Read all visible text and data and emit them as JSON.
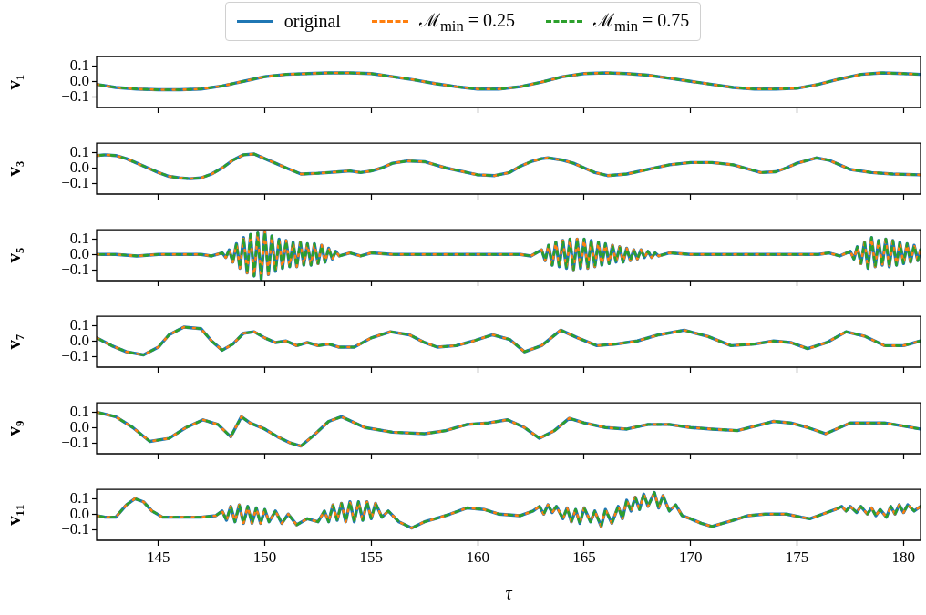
{
  "chart_data": [
    {
      "type": "line",
      "legend": "top",
      "ylabel": "v₁",
      "tick_labels": "y",
      "xlim": [
        142.1,
        180.8
      ],
      "ylim": [
        -0.17,
        0.16
      ],
      "xticks": [
        145,
        150,
        155,
        160,
        165,
        170,
        175,
        180
      ],
      "yticks": [
        {
          "value": -0.1,
          "label": "−0.1"
        },
        {
          "value": 0,
          "label": "0.0"
        },
        {
          "value": 0.1,
          "label": "0.1"
        }
      ],
      "x": [
        142.1,
        143,
        144,
        145,
        146,
        147,
        148,
        149,
        150,
        151,
        152,
        153,
        154,
        155,
        156,
        157,
        158,
        159,
        160,
        161,
        162,
        163,
        164,
        165,
        166,
        167,
        168,
        169,
        170,
        171,
        172,
        173,
        174,
        175,
        176,
        177,
        178,
        179,
        180,
        180.8
      ],
      "series": [
        {
          "name": "original",
          "color": "#1f77b4",
          "line_style": "solid",
          "values": [
            -0.02,
            -0.04,
            -0.05,
            -0.055,
            -0.055,
            -0.05,
            -0.03,
            0.0,
            0.03,
            0.045,
            0.05,
            0.055,
            0.055,
            0.05,
            0.03,
            0.01,
            -0.015,
            -0.035,
            -0.05,
            -0.05,
            -0.035,
            -0.005,
            0.03,
            0.05,
            0.055,
            0.05,
            0.04,
            0.02,
            0.0,
            -0.02,
            -0.04,
            -0.05,
            -0.05,
            -0.045,
            -0.02,
            0.015,
            0.045,
            0.055,
            0.05,
            0.045
          ]
        },
        {
          "name": "ℳ$_{min}$ = 0.25",
          "color": "#ff7f0e",
          "line_style": "dashed",
          "values": [
            -0.02,
            -0.04,
            -0.05,
            -0.055,
            -0.055,
            -0.05,
            -0.03,
            0.0,
            0.03,
            0.045,
            0.05,
            0.055,
            0.055,
            0.05,
            0.03,
            0.01,
            -0.015,
            -0.035,
            -0.05,
            -0.05,
            -0.035,
            -0.005,
            0.03,
            0.05,
            0.055,
            0.05,
            0.04,
            0.02,
            0.0,
            -0.02,
            -0.04,
            -0.05,
            -0.05,
            -0.045,
            -0.02,
            0.015,
            0.045,
            0.055,
            0.05,
            0.045
          ]
        },
        {
          "name": "ℳ$_{min}$ = 0.75",
          "color": "#2ca02c",
          "line_style": "dashed",
          "values": [
            -0.02,
            -0.04,
            -0.05,
            -0.055,
            -0.055,
            -0.05,
            -0.03,
            0.0,
            0.03,
            0.045,
            0.05,
            0.055,
            0.055,
            0.05,
            0.03,
            0.01,
            -0.015,
            -0.035,
            -0.05,
            -0.05,
            -0.035,
            -0.005,
            0.03,
            0.05,
            0.055,
            0.05,
            0.04,
            0.02,
            0.0,
            -0.02,
            -0.04,
            -0.05,
            -0.05,
            -0.045,
            -0.02,
            0.015,
            0.045,
            0.055,
            0.05,
            0.045
          ]
        }
      ]
    },
    {
      "type": "line",
      "ylabel": "v₃",
      "tick_labels": "y",
      "xlim": [
        142.1,
        180.8
      ],
      "ylim": [
        -0.17,
        0.16
      ],
      "xticks": [
        145,
        150,
        155,
        160,
        165,
        170,
        175,
        180
      ],
      "yticks": [
        {
          "value": -0.1,
          "label": "−0.1"
        },
        {
          "value": 0,
          "label": "0.0"
        },
        {
          "value": 0.1,
          "label": "0.1"
        }
      ],
      "x": [
        142.1,
        142.5,
        143,
        143.5,
        144,
        144.5,
        145,
        145.5,
        146,
        146.5,
        147,
        147.5,
        148,
        148.5,
        149,
        149.5,
        150,
        150.5,
        151,
        151.7,
        152.5,
        153,
        153.5,
        154,
        154.5,
        155,
        155.5,
        156,
        156.7,
        157.5,
        158,
        158.5,
        159,
        159.5,
        160,
        160.8,
        161.5,
        162,
        162.5,
        163,
        163.3,
        164,
        164.5,
        165,
        165.5,
        166.1,
        167,
        168,
        169,
        170,
        171,
        172,
        173.3,
        174,
        174.5,
        175,
        175.9,
        176.5,
        177,
        177.5,
        178.5,
        179.5,
        180.8
      ],
      "series": [
        {
          "color": "#1f77b4",
          "line_style": "solid",
          "values": [
            0.08,
            0.085,
            0.08,
            0.06,
            0.03,
            0.0,
            -0.03,
            -0.055,
            -0.065,
            -0.07,
            -0.065,
            -0.04,
            0.0,
            0.05,
            0.085,
            0.09,
            0.06,
            0.03,
            0.0,
            -0.04,
            -0.035,
            -0.03,
            -0.025,
            -0.02,
            -0.03,
            -0.02,
            0.0,
            0.03,
            0.045,
            0.04,
            0.02,
            0.0,
            -0.015,
            -0.03,
            -0.045,
            -0.05,
            -0.03,
            0.01,
            0.04,
            0.06,
            0.065,
            0.05,
            0.03,
            0.0,
            -0.03,
            -0.05,
            -0.04,
            -0.01,
            0.02,
            0.035,
            0.035,
            0.02,
            -0.03,
            -0.025,
            0.0,
            0.03,
            0.065,
            0.05,
            0.02,
            -0.01,
            -0.03,
            -0.04,
            -0.045
          ]
        },
        {
          "color": "#ff7f0e",
          "line_style": "dashed",
          "values": [
            0.08,
            0.085,
            0.08,
            0.06,
            0.03,
            0.0,
            -0.03,
            -0.055,
            -0.065,
            -0.07,
            -0.065,
            -0.04,
            0.0,
            0.05,
            0.085,
            0.09,
            0.06,
            0.03,
            0.0,
            -0.04,
            -0.035,
            -0.03,
            -0.025,
            -0.02,
            -0.03,
            -0.02,
            0.0,
            0.03,
            0.045,
            0.04,
            0.02,
            0.0,
            -0.015,
            -0.03,
            -0.045,
            -0.05,
            -0.03,
            0.01,
            0.04,
            0.06,
            0.065,
            0.05,
            0.03,
            0.0,
            -0.03,
            -0.05,
            -0.04,
            -0.01,
            0.02,
            0.035,
            0.035,
            0.02,
            -0.03,
            -0.025,
            0.0,
            0.03,
            0.065,
            0.05,
            0.02,
            -0.01,
            -0.03,
            -0.04,
            -0.045
          ]
        },
        {
          "color": "#2ca02c",
          "line_style": "dashed",
          "values": [
            0.08,
            0.085,
            0.08,
            0.06,
            0.03,
            0.0,
            -0.03,
            -0.055,
            -0.065,
            -0.07,
            -0.065,
            -0.04,
            0.0,
            0.05,
            0.085,
            0.09,
            0.06,
            0.03,
            0.0,
            -0.04,
            -0.035,
            -0.03,
            -0.025,
            -0.02,
            -0.03,
            -0.02,
            0.0,
            0.03,
            0.045,
            0.04,
            0.02,
            0.0,
            -0.015,
            -0.03,
            -0.045,
            -0.05,
            -0.03,
            0.01,
            0.04,
            0.06,
            0.065,
            0.05,
            0.03,
            0.0,
            -0.03,
            -0.05,
            -0.04,
            -0.01,
            0.02,
            0.035,
            0.035,
            0.02,
            -0.03,
            -0.025,
            0.0,
            0.03,
            0.065,
            0.05,
            0.02,
            -0.01,
            -0.03,
            -0.04,
            -0.045
          ]
        }
      ]
    },
    {
      "type": "line",
      "ylabel": "v₅",
      "tick_labels": "y",
      "xlim": [
        142.1,
        180.8
      ],
      "ylim": [
        -0.17,
        0.16
      ],
      "xticks": [
        145,
        150,
        155,
        160,
        165,
        170,
        175,
        180
      ],
      "yticks": [
        {
          "value": -0.1,
          "label": "−0.1"
        },
        {
          "value": 0,
          "label": "0.0"
        },
        {
          "value": 0.1,
          "label": "0.1"
        }
      ],
      "x": [
        142.1,
        143,
        144,
        145,
        146,
        147,
        147.5,
        148.0,
        148.17,
        148.33,
        148.5,
        148.67,
        148.83,
        149.0,
        149.17,
        149.33,
        149.5,
        149.67,
        149.83,
        150.0,
        150.17,
        150.33,
        150.5,
        150.67,
        150.83,
        151.0,
        151.17,
        151.33,
        151.5,
        151.67,
        151.83,
        152.0,
        152.17,
        152.33,
        152.5,
        152.67,
        152.83,
        153.0,
        153.17,
        153.33,
        153.5,
        154,
        154.5,
        155,
        156,
        157,
        158,
        159,
        160,
        161,
        162,
        162.5,
        163.0,
        163.17,
        163.33,
        163.5,
        163.67,
        163.83,
        164.0,
        164.17,
        164.33,
        164.5,
        164.67,
        164.83,
        165.0,
        165.17,
        165.33,
        165.5,
        165.67,
        165.83,
        166.0,
        166.17,
        166.33,
        166.5,
        166.67,
        166.83,
        167.0,
        167.17,
        167.33,
        167.5,
        167.67,
        167.83,
        168.0,
        168.17,
        168.33,
        168.5,
        169,
        170,
        171,
        172,
        173,
        174,
        175,
        176,
        176.5,
        177,
        177.5,
        177.67,
        177.83,
        178.0,
        178.17,
        178.33,
        178.5,
        178.67,
        178.83,
        179.0,
        179.17,
        179.33,
        179.5,
        179.67,
        179.83,
        180.0,
        180.17,
        180.33,
        180.5,
        180.67,
        180.8
      ],
      "series": [
        {
          "color": "#1f77b4",
          "line_style": "solid",
          "values": [
            0.0,
            0.0,
            -0.01,
            0.0,
            0.0,
            0.0,
            -0.01,
            0.01,
            -0.02,
            0.03,
            -0.05,
            0.07,
            -0.09,
            0.11,
            -0.12,
            0.13,
            -0.14,
            0.14,
            -0.16,
            0.15,
            -0.13,
            0.12,
            -0.11,
            0.1,
            -0.09,
            0.09,
            -0.08,
            0.08,
            -0.08,
            0.08,
            -0.07,
            0.07,
            -0.07,
            0.07,
            -0.06,
            0.06,
            -0.05,
            0.04,
            -0.03,
            0.02,
            -0.01,
            0.01,
            -0.01,
            0.01,
            0.0,
            0.0,
            0.0,
            0.0,
            0.0,
            0.0,
            0.0,
            -0.01,
            0.03,
            -0.04,
            0.06,
            -0.07,
            0.08,
            -0.08,
            0.09,
            -0.09,
            0.1,
            -0.1,
            0.1,
            -0.09,
            0.1,
            -0.09,
            0.09,
            -0.08,
            0.08,
            -0.07,
            0.07,
            -0.06,
            0.06,
            -0.05,
            0.05,
            -0.05,
            0.04,
            -0.04,
            0.03,
            -0.03,
            0.03,
            -0.02,
            0.02,
            -0.02,
            0.01,
            -0.01,
            0.01,
            0.0,
            0.0,
            0.0,
            0.0,
            0.0,
            0.0,
            0.0,
            0.01,
            -0.01,
            0.02,
            -0.03,
            0.05,
            -0.06,
            0.08,
            -0.09,
            0.11,
            -0.08,
            0.09,
            -0.07,
            0.1,
            -0.08,
            0.09,
            -0.07,
            0.08,
            -0.06,
            0.07,
            -0.05,
            0.06,
            -0.04,
            0.03
          ]
        },
        {
          "color": "#ff7f0e",
          "line_style": "dashed",
          "values": [
            0.0,
            0.0,
            -0.01,
            0.0,
            0.0,
            0.0,
            -0.01,
            0.01,
            -0.02,
            0.03,
            -0.05,
            0.07,
            -0.09,
            0.11,
            -0.12,
            0.13,
            -0.14,
            0.14,
            -0.16,
            0.15,
            -0.13,
            0.12,
            -0.11,
            0.1,
            -0.09,
            0.09,
            -0.08,
            0.08,
            -0.08,
            0.08,
            -0.07,
            0.07,
            -0.07,
            0.07,
            -0.06,
            0.06,
            -0.05,
            0.04,
            -0.03,
            0.02,
            -0.01,
            0.01,
            -0.01,
            0.01,
            0.0,
            0.0,
            0.0,
            0.0,
            0.0,
            0.0,
            0.0,
            -0.01,
            0.03,
            -0.04,
            0.06,
            -0.07,
            0.08,
            -0.08,
            0.09,
            -0.09,
            0.1,
            -0.1,
            0.1,
            -0.09,
            0.1,
            -0.09,
            0.09,
            -0.08,
            0.08,
            -0.07,
            0.07,
            -0.06,
            0.06,
            -0.05,
            0.05,
            -0.05,
            0.04,
            -0.04,
            0.03,
            -0.03,
            0.03,
            -0.02,
            0.02,
            -0.02,
            0.01,
            -0.01,
            0.01,
            0.0,
            0.0,
            0.0,
            0.0,
            0.0,
            0.0,
            0.0,
            0.01,
            -0.01,
            0.02,
            -0.03,
            0.05,
            -0.06,
            0.08,
            -0.09,
            0.11,
            -0.08,
            0.09,
            -0.07,
            0.1,
            -0.08,
            0.09,
            -0.07,
            0.08,
            -0.06,
            0.07,
            -0.05,
            0.06,
            -0.04,
            0.03
          ]
        },
        {
          "color": "#2ca02c",
          "line_style": "dashed",
          "values": [
            0.0,
            0.0,
            -0.01,
            0.0,
            0.0,
            0.0,
            -0.01,
            0.01,
            -0.02,
            0.03,
            -0.05,
            0.07,
            -0.09,
            0.11,
            -0.12,
            0.13,
            -0.14,
            0.14,
            -0.16,
            0.15,
            -0.13,
            0.12,
            -0.11,
            0.1,
            -0.09,
            0.09,
            -0.08,
            0.08,
            -0.08,
            0.08,
            -0.07,
            0.07,
            -0.07,
            0.07,
            -0.06,
            0.06,
            -0.05,
            0.04,
            -0.03,
            0.02,
            -0.01,
            0.01,
            -0.01,
            0.01,
            0.0,
            0.0,
            0.0,
            0.0,
            0.0,
            0.0,
            0.0,
            -0.01,
            0.03,
            -0.04,
            0.06,
            -0.07,
            0.08,
            -0.08,
            0.09,
            -0.09,
            0.1,
            -0.1,
            0.1,
            -0.09,
            0.1,
            -0.09,
            0.09,
            -0.08,
            0.08,
            -0.07,
            0.07,
            -0.06,
            0.06,
            -0.05,
            0.05,
            -0.05,
            0.04,
            -0.04,
            0.03,
            -0.03,
            0.03,
            -0.02,
            0.02,
            -0.02,
            0.01,
            -0.01,
            0.01,
            0.0,
            0.0,
            0.0,
            0.0,
            0.0,
            0.0,
            0.0,
            0.01,
            -0.01,
            0.02,
            -0.03,
            0.05,
            -0.06,
            0.08,
            -0.09,
            0.11,
            -0.08,
            0.09,
            -0.07,
            0.1,
            -0.08,
            0.09,
            -0.07,
            0.08,
            -0.06,
            0.07,
            -0.05,
            0.06,
            -0.04,
            0.03
          ]
        }
      ]
    },
    {
      "type": "line",
      "ylabel": "v₇",
      "tick_labels": "y",
      "xlim": [
        142.1,
        180.8
      ],
      "ylim": [
        -0.17,
        0.16
      ],
      "xticks": [
        145,
        150,
        155,
        160,
        165,
        170,
        175,
        180
      ],
      "yticks": [
        {
          "value": -0.1,
          "label": "−0.1"
        },
        {
          "value": 0,
          "label": "0.0"
        },
        {
          "value": 0.1,
          "label": "0.1"
        }
      ],
      "x": [
        142.1,
        142.8,
        143.5,
        144.3,
        145,
        145.5,
        146.2,
        147,
        147.5,
        148,
        148.5,
        149,
        149.5,
        150,
        150.5,
        151,
        151.5,
        152,
        152.5,
        153,
        153.5,
        154.2,
        155,
        155.9,
        156.8,
        157.5,
        158.1,
        159,
        159.8,
        160.7,
        161.5,
        162.2,
        163,
        163.9,
        164.7,
        165.6,
        166.5,
        167.5,
        168.5,
        169.7,
        170.8,
        171.9,
        173,
        173.9,
        174.7,
        175.5,
        176.4,
        177.3,
        178.2,
        179.1,
        180,
        180.8
      ],
      "series": [
        {
          "color": "#1f77b4",
          "line_style": "solid",
          "values": [
            0.02,
            -0.03,
            -0.07,
            -0.09,
            -0.04,
            0.04,
            0.09,
            0.08,
            0.0,
            -0.06,
            -0.02,
            0.05,
            0.06,
            0.02,
            -0.01,
            0.0,
            -0.03,
            -0.01,
            -0.03,
            -0.02,
            -0.04,
            -0.04,
            0.02,
            0.06,
            0.04,
            -0.01,
            -0.04,
            -0.03,
            0.0,
            0.04,
            0.01,
            -0.07,
            -0.03,
            0.07,
            0.02,
            -0.03,
            -0.02,
            0.0,
            0.04,
            0.07,
            0.03,
            -0.03,
            -0.02,
            0.0,
            -0.01,
            -0.05,
            -0.01,
            0.06,
            0.03,
            -0.03,
            -0.03,
            0.0
          ]
        },
        {
          "color": "#ff7f0e",
          "line_style": "dashed",
          "values": [
            0.02,
            -0.03,
            -0.07,
            -0.09,
            -0.04,
            0.04,
            0.09,
            0.08,
            0.0,
            -0.06,
            -0.02,
            0.05,
            0.06,
            0.02,
            -0.01,
            0.0,
            -0.03,
            -0.01,
            -0.03,
            -0.02,
            -0.04,
            -0.04,
            0.02,
            0.06,
            0.04,
            -0.01,
            -0.04,
            -0.03,
            0.0,
            0.04,
            0.01,
            -0.07,
            -0.03,
            0.07,
            0.02,
            -0.03,
            -0.02,
            0.0,
            0.04,
            0.07,
            0.03,
            -0.03,
            -0.02,
            0.0,
            -0.01,
            -0.05,
            -0.01,
            0.06,
            0.03,
            -0.03,
            -0.03,
            0.0
          ]
        },
        {
          "color": "#2ca02c",
          "line_style": "dashed",
          "values": [
            0.02,
            -0.03,
            -0.07,
            -0.09,
            -0.04,
            0.04,
            0.09,
            0.08,
            0.0,
            -0.06,
            -0.02,
            0.05,
            0.06,
            0.02,
            -0.01,
            0.0,
            -0.03,
            -0.01,
            -0.03,
            -0.02,
            -0.04,
            -0.04,
            0.02,
            0.06,
            0.04,
            -0.01,
            -0.04,
            -0.03,
            0.0,
            0.04,
            0.01,
            -0.07,
            -0.03,
            0.07,
            0.02,
            -0.03,
            -0.02,
            0.0,
            0.04,
            0.07,
            0.03,
            -0.03,
            -0.02,
            0.0,
            -0.01,
            -0.05,
            -0.01,
            0.06,
            0.03,
            -0.03,
            -0.03,
            0.0
          ]
        }
      ]
    },
    {
      "type": "line",
      "ylabel": "v₉",
      "tick_labels": "y",
      "xlim": [
        142.1,
        180.8
      ],
      "ylim": [
        -0.17,
        0.16
      ],
      "xticks": [
        145,
        150,
        155,
        160,
        165,
        170,
        175,
        180
      ],
      "yticks": [
        {
          "value": -0.1,
          "label": "−0.1"
        },
        {
          "value": 0,
          "label": "0.0"
        },
        {
          "value": 0.1,
          "label": "0.1"
        }
      ],
      "x": [
        142.1,
        143,
        143.8,
        144.6,
        145.5,
        146.3,
        147.1,
        147.8,
        148.4,
        148.9,
        149.3,
        150,
        150.6,
        151.2,
        151.7,
        152.3,
        153,
        153.6,
        154.7,
        156,
        157.5,
        158.5,
        159.5,
        160.5,
        161.4,
        162.2,
        162.9,
        163.6,
        164.3,
        165,
        166,
        167,
        168,
        169,
        170,
        171,
        172.2,
        173.9,
        174.7,
        175.5,
        176.35,
        177.5,
        178.3,
        179.1,
        180,
        180.8
      ],
      "series": [
        {
          "color": "#1f77b4",
          "line_style": "solid",
          "values": [
            0.1,
            0.07,
            0.0,
            -0.09,
            -0.07,
            0.0,
            0.05,
            0.02,
            -0.06,
            0.07,
            0.03,
            -0.01,
            -0.06,
            -0.1,
            -0.12,
            -0.05,
            0.04,
            0.07,
            0.0,
            -0.03,
            -0.04,
            -0.02,
            0.02,
            0.03,
            0.05,
            0.0,
            -0.07,
            -0.02,
            0.06,
            0.03,
            0.0,
            -0.01,
            0.02,
            0.02,
            0.0,
            -0.01,
            -0.02,
            0.04,
            0.03,
            0.0,
            -0.04,
            0.03,
            0.03,
            0.03,
            0.01,
            -0.01
          ]
        },
        {
          "color": "#ff7f0e",
          "line_style": "dashed",
          "values": [
            0.1,
            0.07,
            0.0,
            -0.09,
            -0.07,
            0.0,
            0.05,
            0.02,
            -0.06,
            0.07,
            0.03,
            -0.01,
            -0.06,
            -0.1,
            -0.12,
            -0.05,
            0.04,
            0.07,
            0.0,
            -0.03,
            -0.04,
            -0.02,
            0.02,
            0.03,
            0.05,
            0.0,
            -0.07,
            -0.02,
            0.06,
            0.03,
            0.0,
            -0.01,
            0.02,
            0.02,
            0.0,
            -0.01,
            -0.02,
            0.04,
            0.03,
            0.0,
            -0.04,
            0.03,
            0.03,
            0.03,
            0.01,
            -0.01
          ]
        },
        {
          "color": "#2ca02c",
          "line_style": "dashed",
          "values": [
            0.1,
            0.07,
            0.0,
            -0.09,
            -0.07,
            0.0,
            0.05,
            0.02,
            -0.06,
            0.07,
            0.03,
            -0.01,
            -0.06,
            -0.1,
            -0.12,
            -0.05,
            0.04,
            0.07,
            0.0,
            -0.03,
            -0.04,
            -0.02,
            0.02,
            0.03,
            0.05,
            0.0,
            -0.07,
            -0.02,
            0.06,
            0.03,
            0.0,
            -0.01,
            0.02,
            0.02,
            0.0,
            -0.01,
            -0.02,
            0.04,
            0.03,
            0.0,
            -0.04,
            0.03,
            0.03,
            0.03,
            0.01,
            -0.01
          ]
        }
      ]
    },
    {
      "type": "line",
      "ylabel": "v₁₁",
      "xlabel": "τ",
      "xlim": [
        142.1,
        180.8
      ],
      "ylim": [
        -0.17,
        0.16
      ],
      "xticks": [
        145,
        150,
        155,
        160,
        165,
        170,
        175,
        180
      ],
      "yticks": [
        {
          "value": -0.1,
          "label": "−0.1"
        },
        {
          "value": 0,
          "label": "0.0"
        },
        {
          "value": 0.1,
          "label": "0.1"
        }
      ],
      "x": [
        142.1,
        142.5,
        143,
        143.5,
        143.9,
        144.3,
        144.7,
        145.2,
        146,
        147,
        147.7,
        148,
        148.2,
        148.4,
        148.6,
        148.8,
        149,
        149.2,
        149.4,
        149.6,
        149.8,
        150,
        150.2,
        150.5,
        150.8,
        151.1,
        151.5,
        152,
        152.5,
        152.8,
        153,
        153.2,
        153.4,
        153.6,
        153.8,
        154,
        154.2,
        154.4,
        154.6,
        154.8,
        155,
        155.2,
        155.5,
        155.8,
        156.3,
        156.9,
        157.5,
        158,
        158.7,
        159.5,
        160.3,
        161,
        162,
        162.6,
        162.9,
        163.1,
        163.3,
        163.5,
        163.7,
        164,
        164.2,
        164.4,
        164.6,
        164.8,
        165,
        165.3,
        165.5,
        165.8,
        166,
        166.3,
        166.6,
        166.8,
        167,
        167.2,
        167.4,
        167.6,
        167.8,
        168,
        168.3,
        168.5,
        168.7,
        169,
        169.3,
        169.6,
        170,
        170.5,
        171,
        171.5,
        172,
        172.7,
        173.5,
        174.5,
        175.2,
        175.6,
        176.2,
        176.8,
        177.1,
        177.3,
        177.5,
        177.8,
        178,
        178.3,
        178.5,
        178.7,
        178.9,
        179.2,
        179.4,
        179.6,
        179.8,
        180,
        180.2,
        180.5,
        180.8
      ],
      "series": [
        {
          "color": "#1f77b4",
          "line_style": "solid",
          "values": [
            -0.01,
            -0.02,
            -0.02,
            0.06,
            0.1,
            0.08,
            0.02,
            -0.02,
            -0.02,
            -0.02,
            -0.01,
            0.02,
            -0.04,
            0.05,
            -0.05,
            0.06,
            -0.06,
            0.05,
            -0.06,
            0.04,
            -0.06,
            0.03,
            -0.05,
            0.02,
            -0.06,
            0.0,
            -0.07,
            -0.03,
            -0.05,
            0.02,
            -0.05,
            0.06,
            -0.04,
            0.07,
            -0.05,
            0.08,
            -0.05,
            0.08,
            -0.04,
            0.08,
            -0.03,
            0.07,
            -0.02,
            0.02,
            -0.05,
            -0.09,
            -0.05,
            -0.03,
            0.0,
            0.04,
            0.03,
            0.0,
            -0.01,
            0.02,
            0.05,
            0.0,
            0.06,
            0.01,
            0.05,
            -0.03,
            0.04,
            -0.05,
            0.03,
            -0.06,
            0.04,
            -0.05,
            0.02,
            -0.08,
            0.03,
            -0.06,
            0.05,
            -0.03,
            0.09,
            0.02,
            0.11,
            0.03,
            0.13,
            0.05,
            0.14,
            0.04,
            0.12,
            0.02,
            0.06,
            -0.01,
            -0.03,
            -0.06,
            -0.08,
            -0.06,
            -0.04,
            -0.01,
            0.0,
            0.0,
            -0.02,
            -0.03,
            0.0,
            0.03,
            0.05,
            0.02,
            0.05,
            0.01,
            0.05,
            0.0,
            0.04,
            -0.01,
            0.03,
            -0.02,
            0.05,
            0.0,
            0.06,
            0.01,
            0.06,
            0.02,
            0.05
          ]
        },
        {
          "color": "#ff7f0e",
          "line_style": "dashed",
          "values": [
            -0.01,
            -0.02,
            -0.02,
            0.06,
            0.1,
            0.08,
            0.02,
            -0.02,
            -0.02,
            -0.02,
            -0.01,
            0.02,
            -0.04,
            0.05,
            -0.05,
            0.06,
            -0.06,
            0.05,
            -0.06,
            0.04,
            -0.06,
            0.03,
            -0.05,
            0.02,
            -0.06,
            0.0,
            -0.07,
            -0.03,
            -0.05,
            0.02,
            -0.05,
            0.06,
            -0.04,
            0.07,
            -0.05,
            0.08,
            -0.05,
            0.08,
            -0.04,
            0.08,
            -0.03,
            0.07,
            -0.02,
            0.02,
            -0.05,
            -0.09,
            -0.05,
            -0.03,
            0.0,
            0.04,
            0.03,
            0.0,
            -0.01,
            0.02,
            0.05,
            0.0,
            0.06,
            0.01,
            0.05,
            -0.03,
            0.04,
            -0.05,
            0.03,
            -0.06,
            0.04,
            -0.05,
            0.02,
            -0.08,
            0.03,
            -0.06,
            0.05,
            -0.03,
            0.09,
            0.02,
            0.11,
            0.03,
            0.13,
            0.05,
            0.14,
            0.04,
            0.12,
            0.02,
            0.06,
            -0.01,
            -0.03,
            -0.06,
            -0.08,
            -0.06,
            -0.04,
            -0.01,
            0.0,
            0.0,
            -0.02,
            -0.03,
            0.0,
            0.03,
            0.05,
            0.02,
            0.05,
            0.01,
            0.05,
            0.0,
            0.04,
            -0.01,
            0.03,
            -0.02,
            0.05,
            0.0,
            0.06,
            0.01,
            0.06,
            0.02,
            0.05
          ]
        },
        {
          "color": "#2ca02c",
          "line_style": "dashed",
          "values": [
            -0.01,
            -0.02,
            -0.02,
            0.06,
            0.1,
            0.08,
            0.02,
            -0.02,
            -0.02,
            -0.02,
            -0.01,
            0.02,
            -0.04,
            0.05,
            -0.05,
            0.06,
            -0.06,
            0.05,
            -0.06,
            0.04,
            -0.06,
            0.03,
            -0.05,
            0.02,
            -0.06,
            0.0,
            -0.07,
            -0.03,
            -0.05,
            0.02,
            -0.05,
            0.06,
            -0.04,
            0.07,
            -0.05,
            0.08,
            -0.05,
            0.08,
            -0.04,
            0.08,
            -0.03,
            0.07,
            -0.02,
            0.02,
            -0.05,
            -0.09,
            -0.05,
            -0.03,
            0.0,
            0.04,
            0.03,
            0.0,
            -0.01,
            0.02,
            0.05,
            0.0,
            0.06,
            0.01,
            0.05,
            -0.03,
            0.04,
            -0.05,
            0.03,
            -0.06,
            0.04,
            -0.05,
            0.02,
            -0.08,
            0.03,
            -0.06,
            0.05,
            -0.03,
            0.09,
            0.02,
            0.11,
            0.03,
            0.13,
            0.05,
            0.14,
            0.04,
            0.12,
            0.02,
            0.06,
            -0.01,
            -0.03,
            -0.06,
            -0.08,
            -0.06,
            -0.04,
            -0.01,
            0.0,
            0.0,
            -0.02,
            -0.03,
            0.0,
            0.03,
            0.05,
            0.02,
            0.05,
            0.01,
            0.05,
            0.0,
            0.04,
            -0.01,
            0.03,
            -0.02,
            0.05,
            0.0,
            0.06,
            0.01,
            0.06,
            0.02,
            0.05
          ]
        }
      ]
    }
  ]
}
